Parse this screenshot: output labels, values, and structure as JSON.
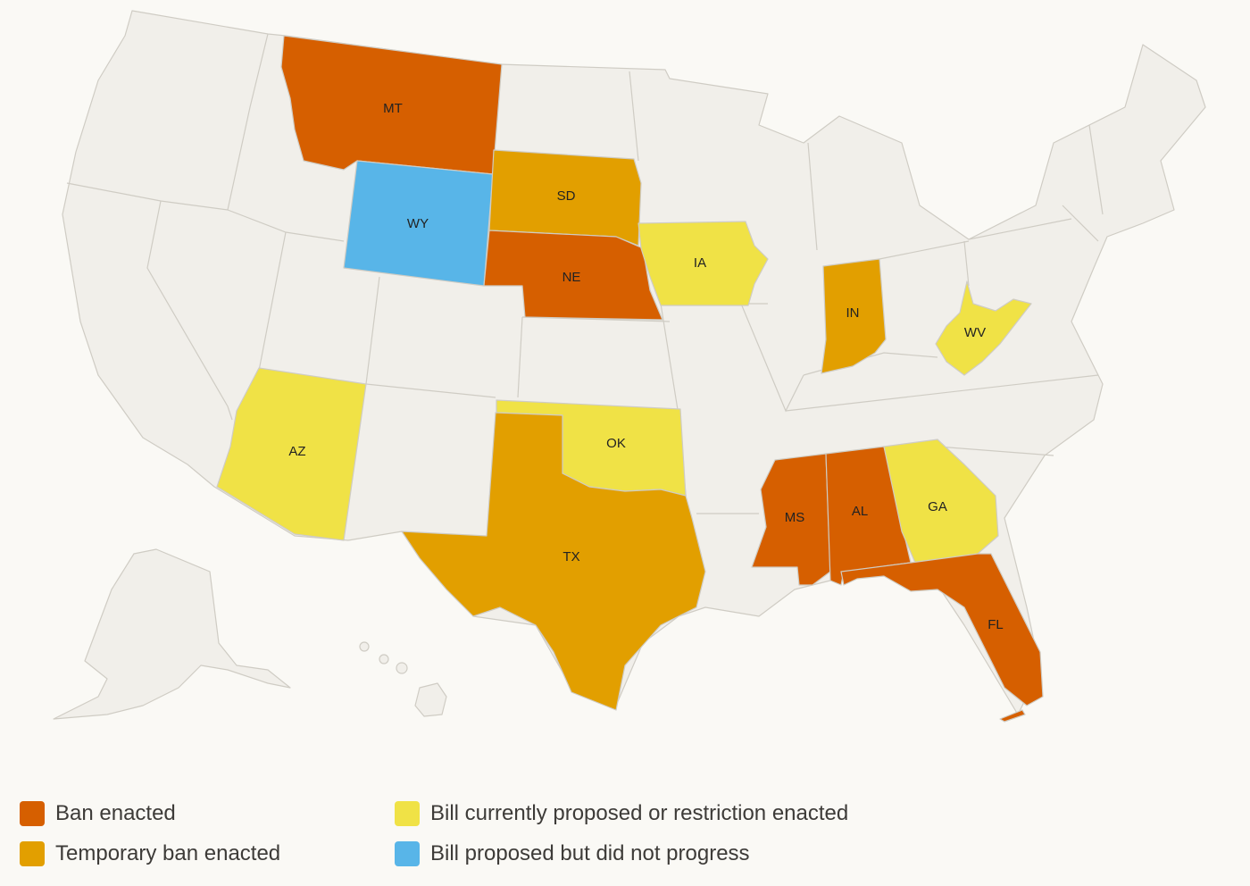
{
  "colors": {
    "background": "#faf9f5",
    "land": "#f1efea",
    "border": "#cfccc4",
    "ban": "#d65f00",
    "temporary": "#e29f00",
    "proposed": "#f0e246",
    "not_progressed": "#58b5e8"
  },
  "map": {
    "states": [
      {
        "abbr": "MT",
        "status": "ban"
      },
      {
        "abbr": "NE",
        "status": "ban"
      },
      {
        "abbr": "MS",
        "status": "ban"
      },
      {
        "abbr": "AL",
        "status": "ban"
      },
      {
        "abbr": "FL",
        "status": "ban"
      },
      {
        "abbr": "SD",
        "status": "temporary"
      },
      {
        "abbr": "TX",
        "status": "temporary"
      },
      {
        "abbr": "IN",
        "status": "temporary"
      },
      {
        "abbr": "IA",
        "status": "proposed"
      },
      {
        "abbr": "AZ",
        "status": "proposed"
      },
      {
        "abbr": "OK",
        "status": "proposed"
      },
      {
        "abbr": "GA",
        "status": "proposed"
      },
      {
        "abbr": "WV",
        "status": "proposed"
      },
      {
        "abbr": "WY",
        "status": "not_progressed"
      }
    ]
  },
  "legend": [
    {
      "key": "ban",
      "label": "Ban enacted"
    },
    {
      "key": "temporary",
      "label": "Temporary ban enacted"
    },
    {
      "key": "proposed",
      "label": "Bill currently proposed or restriction enacted"
    },
    {
      "key": "not_progressed",
      "label": "Bill proposed but did not progress"
    }
  ]
}
